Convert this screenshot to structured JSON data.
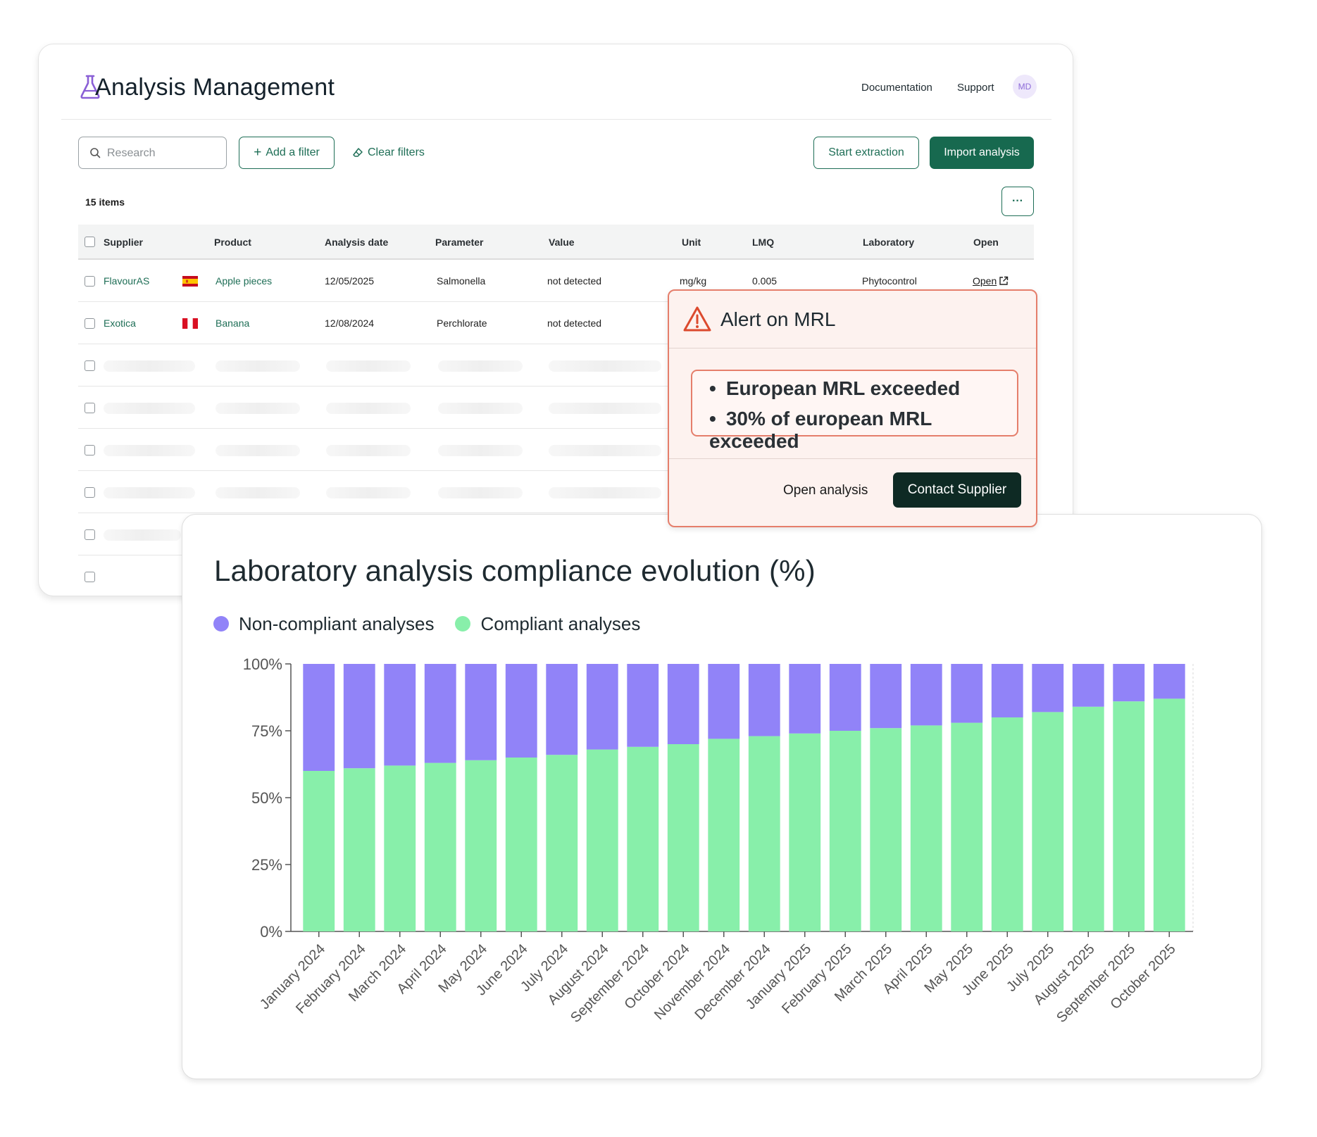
{
  "app": {
    "title": "Analysis Management",
    "nav": {
      "documentation": "Documentation",
      "support": "Support"
    },
    "avatar": "MD"
  },
  "toolbar": {
    "search_placeholder": "Research",
    "add_filter": "Add a filter",
    "clear_filters": "Clear filters",
    "start_extraction": "Start extraction",
    "import_analysis": "Import analysis",
    "more": "···"
  },
  "table": {
    "count": "15 items",
    "columns": {
      "supplier": "Supplier",
      "product": "Product",
      "date": "Analysis date",
      "parameter": "Parameter",
      "value": "Value",
      "unit": "Unit",
      "lmq": "LMQ",
      "laboratory": "Laboratory",
      "open": "Open"
    },
    "rows": [
      {
        "supplier": "FlavourAS",
        "flag": "spain-flag",
        "product": "Apple pieces",
        "date": "12/05/2025",
        "parameter": "Salmonella",
        "value": "not detected",
        "unit": "mg/kg",
        "lmq": "0.005",
        "laboratory": "Phytocontrol",
        "open": "Open"
      },
      {
        "supplier": "Exotica",
        "flag": "peru-flag",
        "product": "Banana",
        "date": "12/08/2024",
        "parameter": "Perchlorate",
        "value": "not detected"
      }
    ]
  },
  "alert": {
    "title": "Alert on MRL",
    "items": [
      "European MRL exceeded",
      "30% of european MRL exceeded"
    ],
    "open_analysis": "Open analysis",
    "contact_supplier": "Contact Supplier",
    "colors": {
      "border": "#e57e6b",
      "background": "#fdf2ef",
      "icon": "#dc4a2e"
    }
  },
  "chart": {
    "legend": {
      "noncompliant": "Non-compliant analyses",
      "compliant": "Compliant analyses"
    }
  },
  "chart_data": {
    "type": "bar",
    "stacked": true,
    "title": "Laboratory analysis compliance evolution (%)",
    "categories": [
      "January 2024",
      "February 2024",
      "March 2024",
      "April 2024",
      "May 2024",
      "June 2024",
      "July 2024",
      "August 2024",
      "September 2024",
      "October 2024",
      "November 2024",
      "December 2024",
      "January 2025",
      "February 2025",
      "March 2025",
      "April 2025",
      "May 2025",
      "June 2025",
      "July 2025",
      "August 2025",
      "September 2025",
      "October 2025"
    ],
    "series": [
      {
        "name": "Compliant analyses",
        "color": "#88efaa",
        "values": [
          60,
          61,
          62,
          63,
          64,
          65,
          66,
          68,
          69,
          70,
          72,
          73,
          74,
          75,
          76,
          77,
          78,
          80,
          82,
          84,
          86,
          87
        ]
      },
      {
        "name": "Non-compliant analyses",
        "color": "#9183f8",
        "values": [
          40,
          39,
          38,
          37,
          36,
          35,
          34,
          32,
          31,
          30,
          28,
          27,
          26,
          25,
          24,
          23,
          22,
          20,
          18,
          16,
          14,
          13
        ]
      }
    ],
    "ylim": [
      0,
      100
    ],
    "yticks": [
      "0%",
      "25%",
      "50%",
      "75%",
      "100%"
    ],
    "yticks_values": [
      0,
      25,
      50,
      75,
      100
    ],
    "legend": "top-left",
    "grid": false
  }
}
